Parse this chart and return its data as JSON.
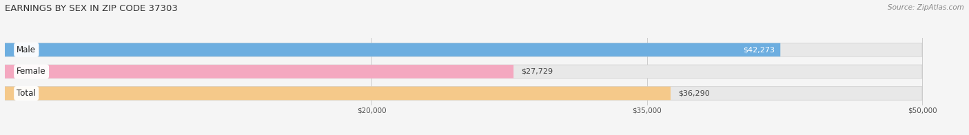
{
  "title": "EARNINGS BY SEX IN ZIP CODE 37303",
  "source": "Source: ZipAtlas.com",
  "categories": [
    "Male",
    "Female",
    "Total"
  ],
  "values": [
    42273,
    27729,
    36290
  ],
  "bar_colors": [
    "#6daee0",
    "#f4a8c0",
    "#f5c98a"
  ],
  "x_min": 0,
  "x_max": 50000,
  "x_ticks": [
    20000,
    35000,
    50000
  ],
  "x_tick_labels": [
    "$20,000",
    "$35,000",
    "$50,000"
  ],
  "bar_height": 0.62,
  "background_color": "#f5f5f5",
  "bar_bg_color": "#e8e8e8",
  "title_fontsize": 9.5,
  "source_fontsize": 7.5,
  "label_fontsize": 8,
  "category_fontsize": 8.5,
  "value_label_inside_idx": [
    0
  ],
  "value_label_inside_color": "#ffffff",
  "value_label_outside_color": "#444444"
}
